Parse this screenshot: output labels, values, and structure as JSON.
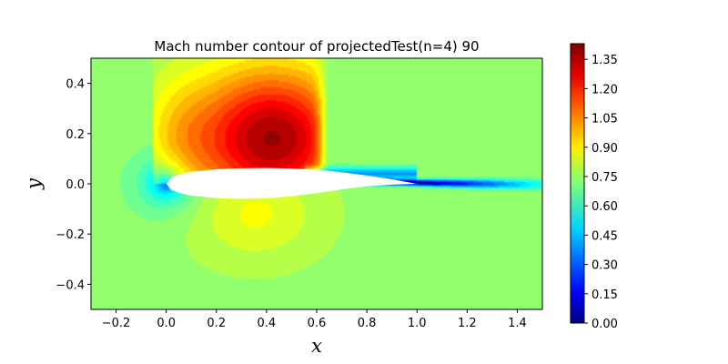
{
  "chart_data": {
    "type": "heatmap",
    "subtype": "filled-contour",
    "title": "Mach number contour of projectedTest(n=4) 90",
    "xlabel": "x",
    "ylabel": "y",
    "xlim": [
      -0.3,
      1.5
    ],
    "ylim": [
      -0.5,
      0.5
    ],
    "x_ticks": [
      -0.2,
      0.0,
      0.2,
      0.4,
      0.6,
      0.8,
      1.0,
      1.2,
      1.4
    ],
    "x_tick_labels": [
      "−0.2",
      "0.0",
      "0.2",
      "0.4",
      "0.6",
      "0.8",
      "1.0",
      "1.2",
      "1.4"
    ],
    "y_ticks": [
      0.4,
      0.2,
      0.0,
      -0.2,
      -0.4
    ],
    "y_tick_labels": [
      "0.4",
      "0.2",
      "0.0",
      "−0.2",
      "−0.4"
    ],
    "colormap": "jet",
    "colorbar": {
      "range": [
        0.0,
        1.43
      ],
      "ticks": [
        0.0,
        0.15,
        0.3,
        0.45,
        0.6,
        0.75,
        0.9,
        1.05,
        1.2,
        1.35
      ],
      "tick_labels": [
        "0.00",
        "0.15",
        "0.30",
        "0.45",
        "0.60",
        "0.75",
        "0.90",
        "1.05",
        "1.20",
        "1.35"
      ],
      "placement": "right"
    },
    "field": {
      "freestream_mach": 0.75,
      "peak_mach": 1.42,
      "peak_location": [
        0.55,
        0.16
      ],
      "shock_x": 0.62,
      "stagnation_point": [
        0.0,
        0.0
      ],
      "wake_min_mach": 0.0
    },
    "airfoil": {
      "chord": [
        0.0,
        1.0
      ],
      "upper_surface": [
        [
          0.0,
          0.0
        ],
        [
          0.02,
          0.025
        ],
        [
          0.05,
          0.037
        ],
        [
          0.1,
          0.048
        ],
        [
          0.2,
          0.058
        ],
        [
          0.3,
          0.062
        ],
        [
          0.4,
          0.063
        ],
        [
          0.5,
          0.061
        ],
        [
          0.6,
          0.056
        ],
        [
          0.7,
          0.046
        ],
        [
          0.8,
          0.033
        ],
        [
          0.9,
          0.018
        ],
        [
          1.0,
          0.0
        ]
      ],
      "lower_surface": [
        [
          0.0,
          0.0
        ],
        [
          0.02,
          -0.024
        ],
        [
          0.05,
          -0.036
        ],
        [
          0.1,
          -0.047
        ],
        [
          0.2,
          -0.057
        ],
        [
          0.3,
          -0.06
        ],
        [
          0.4,
          -0.058
        ],
        [
          0.5,
          -0.05
        ],
        [
          0.6,
          -0.037
        ],
        [
          0.7,
          -0.022
        ],
        [
          0.8,
          -0.01
        ],
        [
          0.9,
          -0.003
        ],
        [
          1.0,
          0.0
        ]
      ],
      "fill": "#ffffff"
    }
  }
}
